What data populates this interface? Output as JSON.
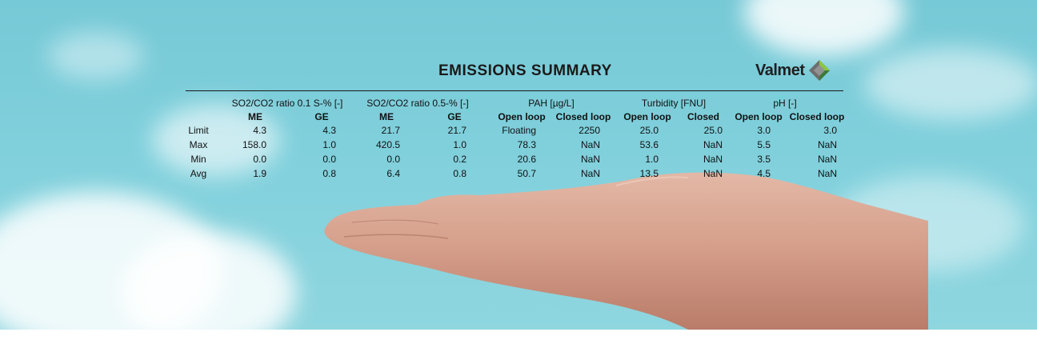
{
  "title": "EMISSIONS SUMMARY",
  "logo": {
    "text": "Valmet",
    "color_dark": "#3d7a3a",
    "color_light": "#8cc63f",
    "color_grey": "#6e6e6e"
  },
  "groups": [
    "SO2/CO2 ratio 0.1 S-% [-]",
    "SO2/CO2 ratio 0.5-% [-]",
    "PAH [µg/L]",
    "Turbidity [FNU]",
    "pH [-]"
  ],
  "columns": [
    "ME",
    "GE",
    "ME",
    "GE",
    "Open loop",
    "Closed loop",
    "Open loop",
    "Closed",
    "Open loop",
    "Closed loop"
  ],
  "rows": [
    {
      "label": "Limit",
      "values": [
        "4.3",
        "4.3",
        "21.7",
        "21.7",
        "Floating",
        "2250",
        "25.0",
        "25.0",
        "3.0",
        "3.0"
      ]
    },
    {
      "label": "Max",
      "values": [
        "158.0",
        "1.0",
        "420.5",
        "1.0",
        "78.3",
        "NaN",
        "53.6",
        "NaN",
        "5.5",
        "NaN"
      ]
    },
    {
      "label": "Min",
      "values": [
        "0.0",
        "0.0",
        "0.0",
        "0.2",
        "20.6",
        "NaN",
        "1.0",
        "NaN",
        "3.5",
        "NaN"
      ]
    },
    {
      "label": "Avg",
      "values": [
        "1.9",
        "0.8",
        "6.4",
        "0.8",
        "50.7",
        "NaN",
        "13.5",
        "NaN",
        "4.5",
        "NaN"
      ]
    }
  ]
}
